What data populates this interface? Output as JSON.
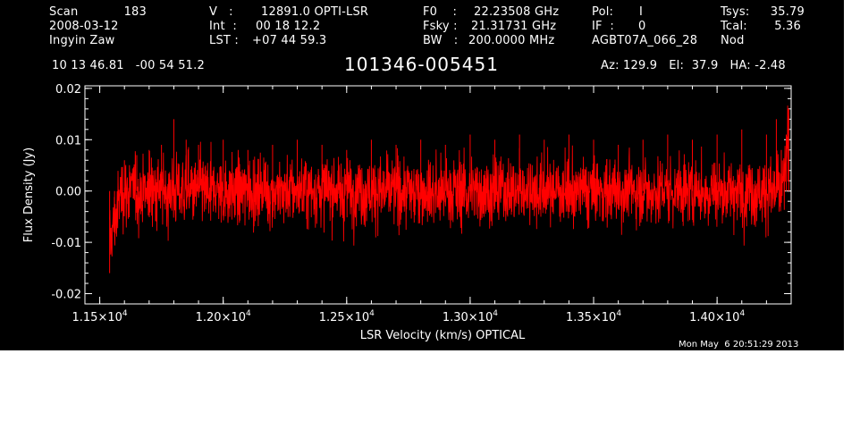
{
  "header": {
    "scan_label": "Scan",
    "scan_value": "183",
    "date": "2008-03-12",
    "observer": "Ingyin Zaw",
    "v_label": "V   :",
    "v_value": "12891.0 OPTI-LSR",
    "int_label": "Int  :",
    "int_value": "00 18 12.2",
    "lst_label": "LST :",
    "lst_value": "+07 44 59.3",
    "f0_label": "F0    :",
    "f0_value": "22.23508 GHz",
    "fsky_label": "Fsky :",
    "fsky_value": "21.31731 GHz",
    "bw_label": "BW   :",
    "bw_value": "200.0000 MHz",
    "pol_label": "Pol:",
    "pol_value": "I",
    "if_label": "IF  :",
    "if_value": "0",
    "project": "AGBT07A_066_28",
    "tsys_label": "Tsys:",
    "tsys_value": "35.79",
    "tcal_label": "Tcal:",
    "tcal_value": "5.36",
    "mode": "Nod",
    "coords": "10 13 46.81   -00 54 51.2",
    "source": "101346-005451",
    "az_el_ha": "Az: 129.9   El:  37.9   HA: -2.48"
  },
  "timestamp": "Mon May  6 20:51:29 2013",
  "chart_data": {
    "type": "line",
    "title": "101346-005451",
    "xlabel": "LSR Velocity (km/s) OPTICAL",
    "ylabel": "Flux Density (Jy)",
    "xlim": [
      11440,
      14300
    ],
    "ylim": [
      -0.022,
      0.0205
    ],
    "x_ticks": [
      11500,
      12000,
      12500,
      13000,
      13500,
      14000
    ],
    "x_tick_labels": [
      {
        "mantissa": "1.15×10",
        "exp": "4"
      },
      {
        "mantissa": "1.20×10",
        "exp": "4"
      },
      {
        "mantissa": "1.25×10",
        "exp": "4"
      },
      {
        "mantissa": "1.30×10",
        "exp": "4"
      },
      {
        "mantissa": "1.35×10",
        "exp": "4"
      },
      {
        "mantissa": "1.40×10",
        "exp": "4"
      }
    ],
    "y_ticks": [
      -0.02,
      -0.01,
      0.0,
      0.01,
      0.02
    ],
    "y_tick_labels": [
      "-0.02",
      "-0.01",
      "0.00",
      "0.01",
      "0.02"
    ],
    "series": [
      {
        "color": "#ff0000",
        "x_start": 11540,
        "x_end": 14290,
        "noise_rms_jy": 0.0035,
        "x": [
          11540,
          11560,
          11600,
          11650,
          11700,
          11750,
          11800,
          11850,
          11900,
          12000,
          12100,
          12200,
          12300,
          12400,
          12500,
          12600,
          12700,
          12800,
          12900,
          13000,
          13100,
          13200,
          13300,
          13400,
          13500,
          13600,
          13700,
          13800,
          13900,
          14000,
          14100,
          14200,
          14240,
          14260,
          14280,
          14290
        ],
        "y": [
          -0.016,
          -0.008,
          0.006,
          0.007,
          0.008,
          0.009,
          0.014,
          0.01,
          0.009,
          0.01,
          0.008,
          0.009,
          0.01,
          0.009,
          0.008,
          0.01,
          0.009,
          0.01,
          0.009,
          0.011,
          0.01,
          0.011,
          0.01,
          0.011,
          0.01,
          0.009,
          0.01,
          0.011,
          0.01,
          0.011,
          0.012,
          0.011,
          0.014,
          0.008,
          0.011,
          0.016
        ]
      }
    ],
    "grid": false,
    "legend": "none"
  }
}
